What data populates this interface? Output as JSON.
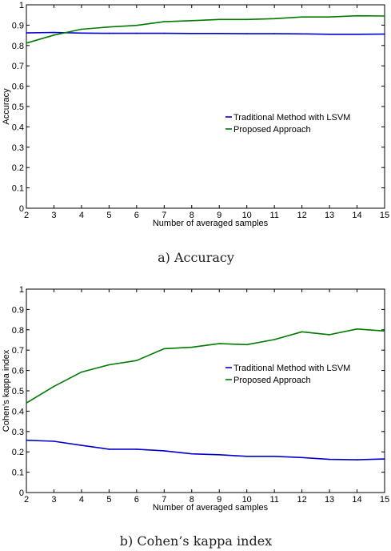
{
  "chart_data": [
    {
      "type": "line",
      "caption": "a) Accuracy",
      "xlabel": "Number of averaged samples",
      "ylabel": "Accuracy",
      "xlim": [
        2,
        15
      ],
      "ylim": [
        0,
        1
      ],
      "xticks": [
        2,
        3,
        4,
        5,
        6,
        7,
        8,
        9,
        10,
        11,
        12,
        13,
        14,
        15
      ],
      "yticks": [
        0,
        0.1,
        0.2,
        0.3,
        0.4,
        0.5,
        0.6,
        0.7,
        0.8,
        0.9,
        1
      ],
      "grid": false,
      "legend_position": "center-right",
      "x": [
        2,
        3,
        4,
        5,
        6,
        7,
        8,
        9,
        10,
        11,
        12,
        13,
        14,
        15
      ],
      "series": [
        {
          "name": "Traditional Method with LSVM",
          "color": "#0000cc",
          "values": [
            0.862,
            0.864,
            0.861,
            0.86,
            0.86,
            0.86,
            0.859,
            0.859,
            0.858,
            0.858,
            0.857,
            0.855,
            0.855,
            0.856
          ]
        },
        {
          "name": "Proposed Approach",
          "color": "#007a00",
          "values": [
            0.812,
            0.851,
            0.88,
            0.891,
            0.899,
            0.917,
            0.922,
            0.928,
            0.928,
            0.932,
            0.94,
            0.94,
            0.946,
            0.945
          ]
        }
      ]
    },
    {
      "type": "line",
      "caption": "b) Cohen’s kappa index",
      "xlabel": "Number of averaged samples",
      "ylabel": "Cohen's kappa index",
      "xlim": [
        2,
        15
      ],
      "ylim": [
        0,
        1
      ],
      "xticks": [
        2,
        3,
        4,
        5,
        6,
        7,
        8,
        9,
        10,
        11,
        12,
        13,
        14,
        15
      ],
      "yticks": [
        0,
        0.1,
        0.2,
        0.3,
        0.4,
        0.5,
        0.6,
        0.7,
        0.8,
        0.9,
        1
      ],
      "grid": false,
      "legend_position": "center-right",
      "x": [
        2,
        3,
        4,
        5,
        6,
        7,
        8,
        9,
        10,
        11,
        12,
        13,
        14,
        15
      ],
      "series": [
        {
          "name": "Traditional Method with LSVM",
          "color": "#0000cc",
          "values": [
            0.257,
            0.252,
            0.232,
            0.213,
            0.213,
            0.205,
            0.19,
            0.186,
            0.178,
            0.178,
            0.172,
            0.163,
            0.161,
            0.165
          ]
        },
        {
          "name": "Proposed Approach",
          "color": "#007a00",
          "values": [
            0.44,
            0.522,
            0.592,
            0.628,
            0.649,
            0.707,
            0.714,
            0.732,
            0.727,
            0.752,
            0.79,
            0.776,
            0.804,
            0.794
          ]
        }
      ]
    }
  ]
}
